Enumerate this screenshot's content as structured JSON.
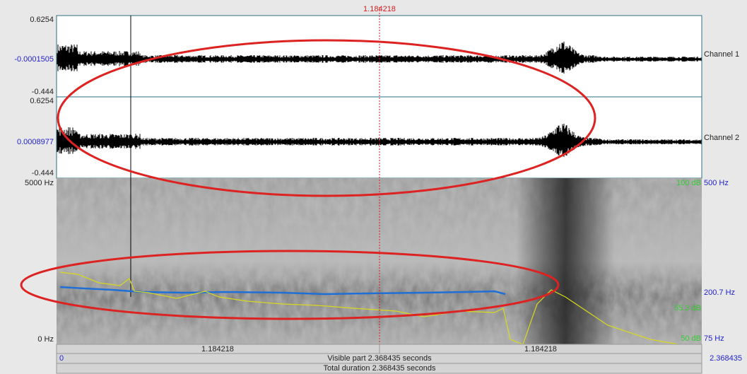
{
  "cursor": {
    "time_top": "1.184218"
  },
  "channel1": {
    "max": "0.6254",
    "mid": "-0.0001505",
    "min": "-0.444",
    "name": "Channel 1"
  },
  "channel2": {
    "max": "0.6254",
    "mid": "0.0008977",
    "min": "-0.444",
    "name": "Channel 2"
  },
  "spectrogram": {
    "freq_max": "5000 Hz",
    "freq_min": "0 Hz",
    "db_top": "100 dB",
    "pitch_max": "500 Hz",
    "pitch_cursor": "200.7 Hz",
    "db_cursor": "55.3 dB",
    "db_bottom": "50 dB",
    "pitch_min": "75 Hz"
  },
  "time_axis": {
    "start": "0",
    "cursor_left": "1.184218",
    "cursor_right": "1.184218",
    "end": "2.368435",
    "visible": "Visible part 2.368435 seconds",
    "total": "Total duration 2.368435 seconds"
  }
}
